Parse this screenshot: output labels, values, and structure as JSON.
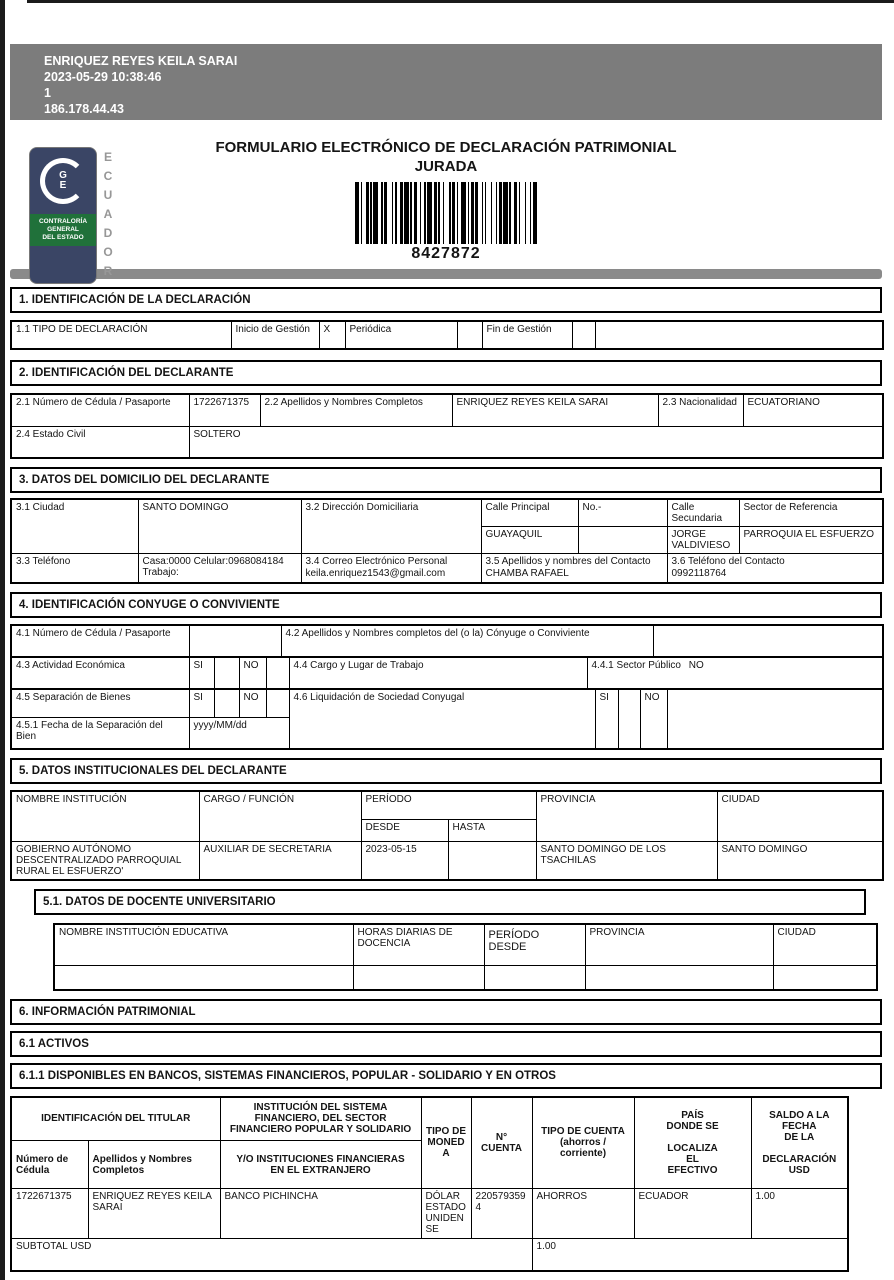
{
  "print_header": {
    "name": "ENRIQUEZ REYES KEILA SARAI",
    "datetime": "2023-05-29 10:38:46",
    "page": "1",
    "ip": "186.178.44.43"
  },
  "title": {
    "line1": "FORMULARIO ELECTRÓNICO DE DECLARACIÓN PATRIMONIAL",
    "line2": "JURADA"
  },
  "logo": {
    "monogram_g": "G",
    "monogram_e": "E",
    "org_name": "CONTRALORÍA\nGENERAL\nDEL ESTADO",
    "country": "ECUADOR",
    "navy_color": "#3a4565",
    "green_color": "#20713a"
  },
  "barcode": {
    "number": "8427872"
  },
  "s1": {
    "header": "1. IDENTIFICACIÓN DE LA DECLARACIÓN",
    "tipo_label": "1.1 TIPO DE DECLARACIÓN",
    "inicio_label": "Inicio de Gestión",
    "inicio_value": "X",
    "periodica_label": "Periódica",
    "periodica_value": "",
    "fin_label": "Fin de Gestión",
    "fin_value": ""
  },
  "s2": {
    "header": "2. IDENTIFICACIÓN DEL DECLARANTE",
    "cedula_label": "2.1 Número de Cédula / Pasaporte",
    "cedula_value": "1722671375",
    "nombres_label": "2.2 Apellidos y Nombres Completos",
    "nombres_value": "ENRIQUEZ REYES KEILA SARAI",
    "nacionalidad_label": "2.3 Nacionalidad",
    "nacionalidad_value": "ECUATORIANO",
    "estado_civil_label": "2.4 Estado Civil",
    "estado_civil_value": "SOLTERO"
  },
  "s3": {
    "header": "3. DATOS DEL DOMICILIO DEL DECLARANTE",
    "ciudad_label": "3.1 Ciudad",
    "ciudad_value": "SANTO DOMINGO",
    "direccion_label": "3.2 Dirección Domiciliaria",
    "calle_principal_label": "Calle Principal",
    "calle_principal_value": "GUAYAQUIL",
    "numero_label": "No.-",
    "numero_value": "",
    "calle_secundaria_label": "Calle Secundaria",
    "calle_secundaria_value": "JORGE VALDIVIESO",
    "sector_label": "Sector de Referencia",
    "sector_value": "PARROQUIA EL ESFUERZO",
    "telefono_label": "3.3 Teléfono",
    "telefono_value": "Casa:0000 Celular:0968084184 Trabajo:",
    "correo_label": "3.4 Correo Electrónico Personal",
    "correo_value": "keila.enriquez1543@gmail.com",
    "contacto_label": "3.5 Apellidos y nombres del Contacto",
    "contacto_value": "CHAMBA RAFAEL",
    "telefono_contacto_label": "3.6 Teléfono del Contacto",
    "telefono_contacto_value": "0992118764"
  },
  "s4": {
    "header": "4. IDENTIFICACIÓN CONYUGE O CONVIVIENTE",
    "cedula_label": "4.1 Número de Cédula / Pasaporte",
    "cedula_value": "",
    "conyuge_label": "4.2 Apellidos y Nombres completos del (o la) Cónyuge o Conviviente",
    "conyuge_value": "",
    "actividad_label": "4.3 Actividad Económica",
    "si_label": "SI",
    "no_label": "NO",
    "cargo_label": "4.4 Cargo y Lugar de Trabajo",
    "sector_publico_label": "4.4.1 Sector Público",
    "sector_publico_value": "NO",
    "separacion_label": "4.5 Separación de Bienes",
    "liquidacion_label": "4.6 Liquidación de Sociedad Conyugal",
    "fecha_separacion_label": "4.5.1 Fecha de la Separación del Bien",
    "fecha_separacion_value": "yyyy/MM/dd"
  },
  "s5": {
    "header": "5. DATOS INSTITUCIONALES DEL DECLARANTE",
    "col_institucion": "NOMBRE INSTITUCIÓN",
    "col_cargo": "CARGO / FUNCIÓN",
    "col_periodo": "PERÍODO",
    "col_desde": "DESDE",
    "col_hasta": "HASTA",
    "col_provincia": "PROVINCIA",
    "col_ciudad": "CIUDAD",
    "row": {
      "institucion": "GOBIERNO AUTÓNOMO DESCENTRALIZADO PARROQUIAL RURAL EL ESFUERZO'",
      "cargo": "AUXILIAR DE SECRETARIA",
      "desde": "2023-05-15",
      "hasta": "",
      "provincia": "SANTO DOMINGO DE LOS TSACHILAS",
      "ciudad": "SANTO DOMINGO"
    }
  },
  "s51": {
    "header": "5.1. DATOS DE DOCENTE UNIVERSITARIO",
    "col_institucion": "NOMBRE INSTITUCIÓN EDUCATIVA",
    "col_horas": "HORAS DIARIAS DE\nDOCENCIA",
    "col_periodo": "PERÍODO\nDESDE",
    "col_provincia": "PROVINCIA",
    "col_ciudad": "CIUDAD"
  },
  "s6": {
    "header": "6. INFORMACIÓN PATRIMONIAL",
    "s61_header": "6.1 ACTIVOS",
    "s611_header": "6.1.1 DISPONIBLES EN BANCOS, SISTEMAS FINANCIEROS, POPULAR - SOLIDARIO Y EN OTROS"
  },
  "bank": {
    "h_titular": "IDENTIFICACIÓN DEL TITULAR",
    "h_institucion_top": "INSTITUCIÓN DEL SISTEMA\nFINANCIERO, DEL SECTOR\nFINANCIERO POPULAR Y SOLIDARIO",
    "h_cedula": "Número de\nCédula",
    "h_apellidos": "Apellidos y Nombres\nCompletos",
    "h_institucion_bottom": "Y/O INSTITUCIONES FINANCIERAS\nEN EL EXTRANJERO",
    "h_moneda": "TIPO DE\nMONEDA",
    "h_cuenta": "N° CUENTA",
    "h_tipo_cuenta": "TIPO DE CUENTA\n(ahorros / corriente)",
    "h_pais": "PAÍS\nDONDE SE\n\nLOCALIZA\nEL\nEFECTIVO",
    "h_saldo": "SALDO A LA\nFECHA\nDE LA\n\nDECLARACIÓN\nUSD",
    "row": {
      "cedula": "1722671375",
      "nombres": "ENRIQUEZ REYES KEILA SARAI",
      "institucion": "BANCO PICHINCHA",
      "moneda": "DÓLAR ESTADOUNIDENSE",
      "cuenta": "2205793594",
      "tipo_cuenta": "AHORROS",
      "pais": "ECUADOR",
      "saldo": "1.00"
    },
    "subtotal_label": "SUBTOTAL USD",
    "subtotal_value": "1.00"
  }
}
